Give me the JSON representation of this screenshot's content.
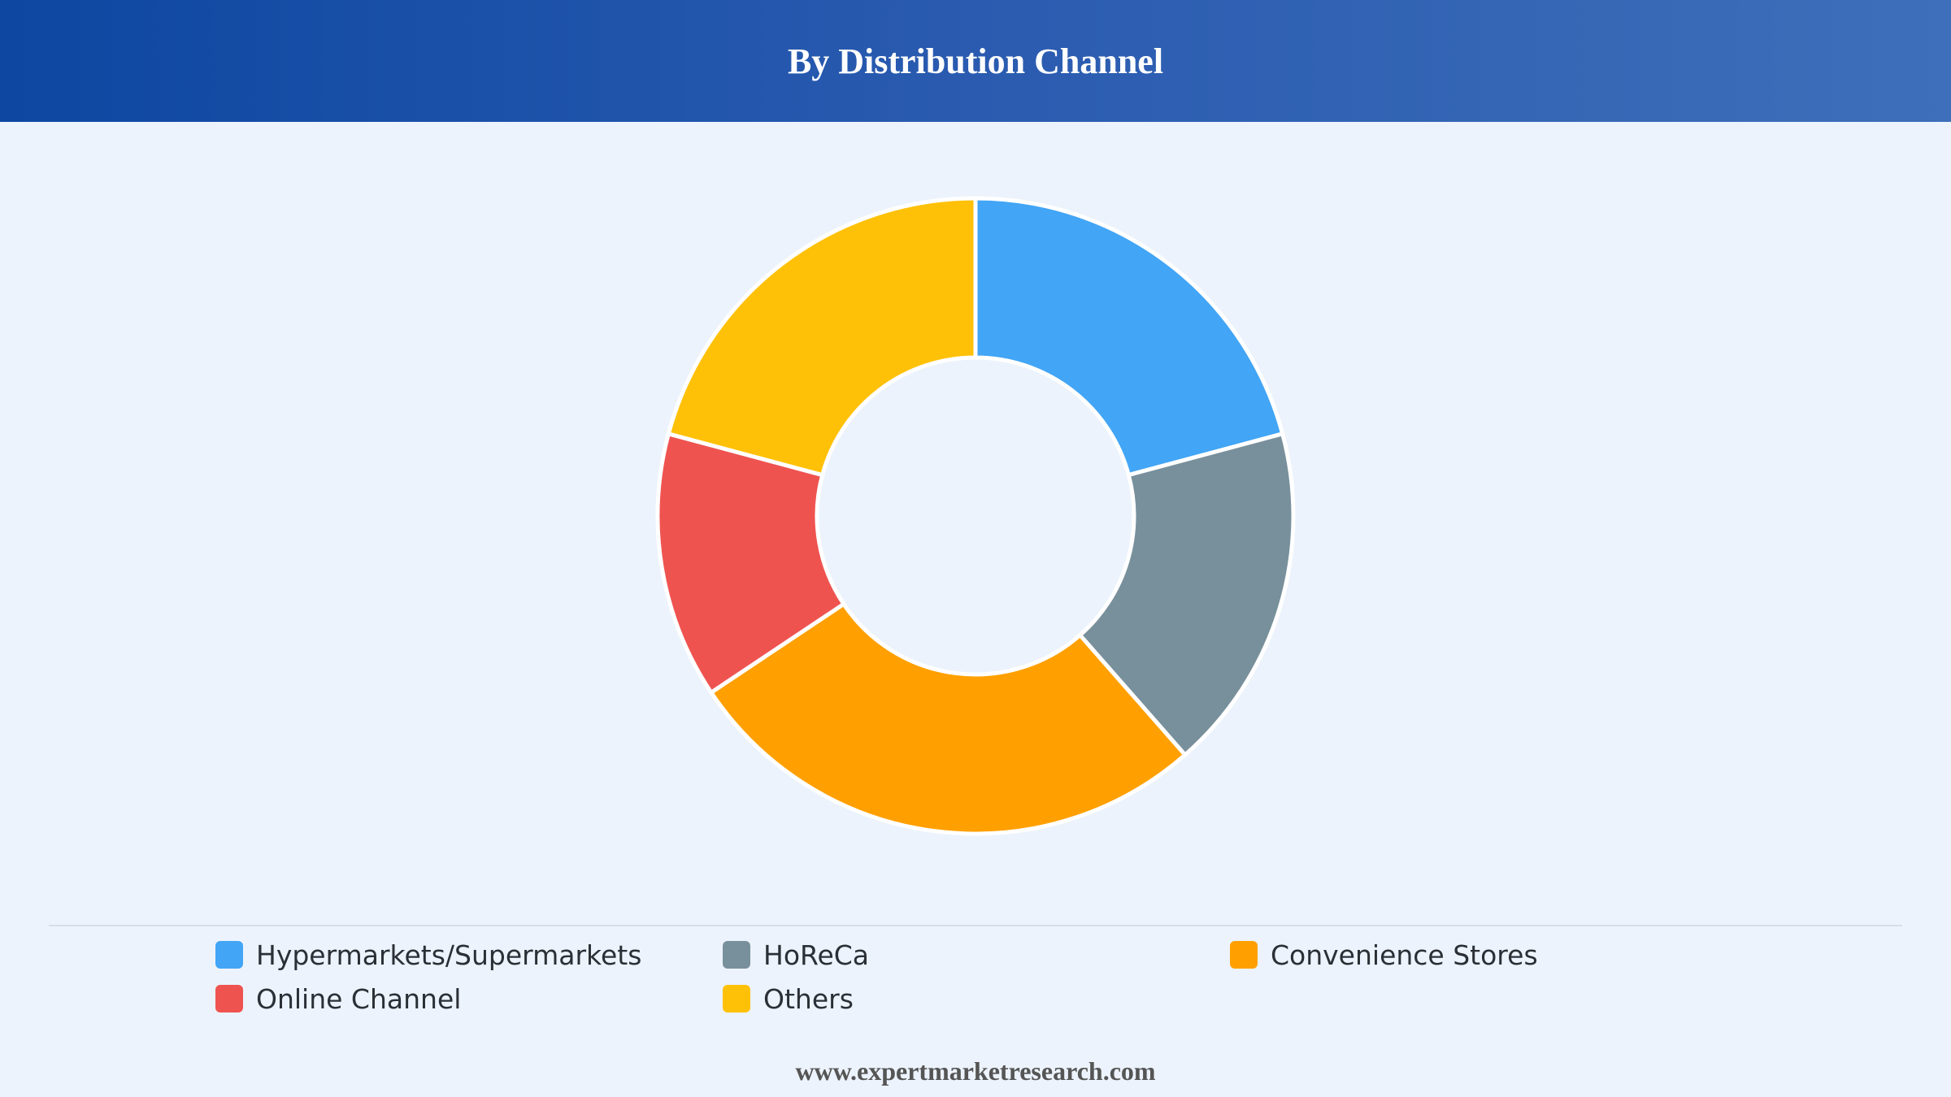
{
  "header": {
    "title": "By Distribution Channel"
  },
  "chart_data": {
    "type": "pie",
    "variant": "donut",
    "title": "By Distribution Channel",
    "categories": [
      "Hypermarkets/Supermarkets",
      "HoReCa",
      "Convenience Stores",
      "Online Channel",
      "Others"
    ],
    "values": [
      20,
      17,
      26,
      13,
      20
    ],
    "colors": [
      "#42a5f5",
      "#78909c",
      "#ffa000",
      "#ef5350",
      "#ffc107"
    ],
    "legend_position": "bottom",
    "data_labels": false
  },
  "legend": {
    "items": [
      {
        "label": "Hypermarkets/Supermarkets",
        "color": "#42a5f5"
      },
      {
        "label": "HoReCa",
        "color": "#78909c"
      },
      {
        "label": "Convenience Stores",
        "color": "#ffa000"
      },
      {
        "label": "Online Channel",
        "color": "#ef5350"
      },
      {
        "label": "Others",
        "color": "#ffc107"
      }
    ]
  },
  "footer": {
    "text": "www.expertmarketresearch.com"
  }
}
